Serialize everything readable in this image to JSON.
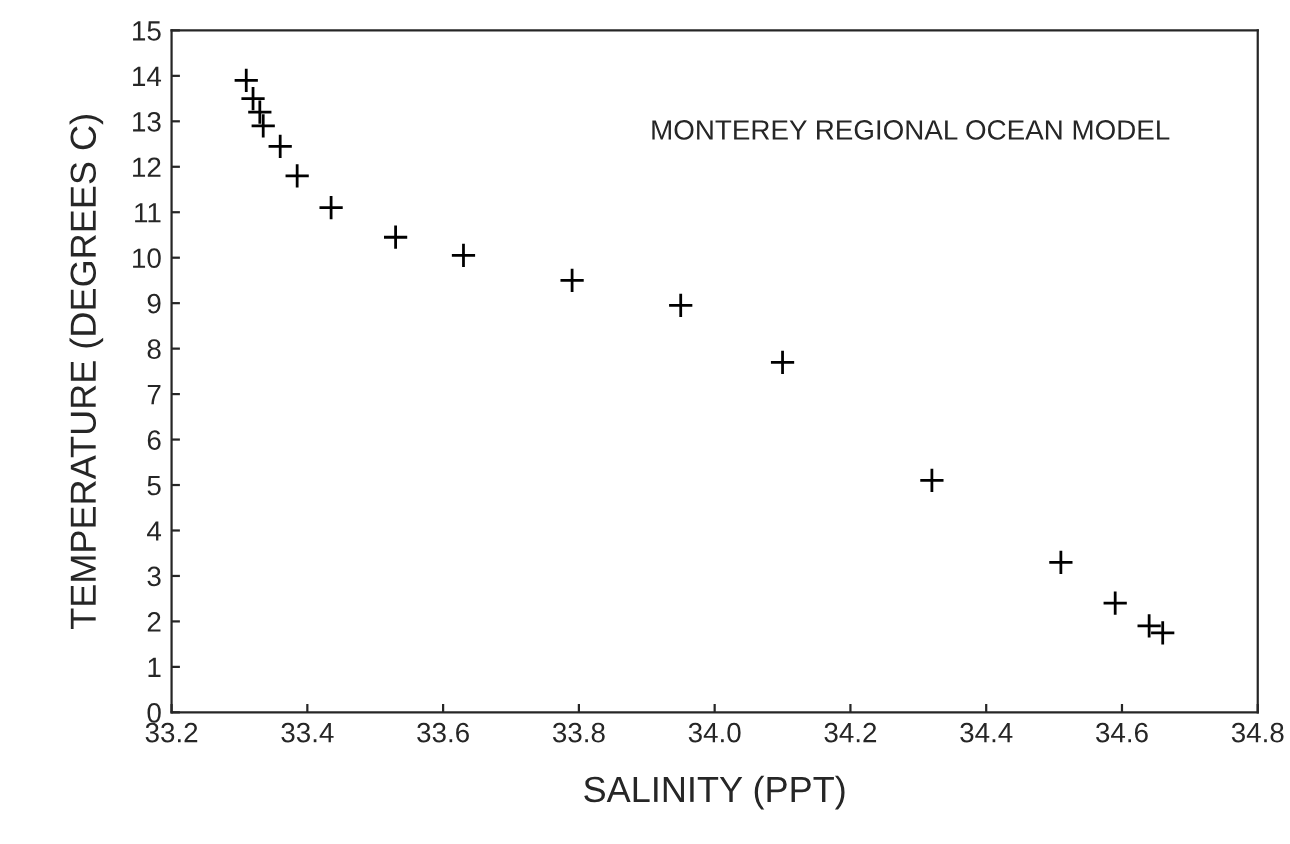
{
  "chart_data": {
    "type": "scatter",
    "xlabel": "SALINITY (PPT)",
    "ylabel": "TEMPERATURE (DEGREES C)",
    "annotations": [
      "MONTEREY REGIONAL OCEAN MODEL"
    ],
    "x": [
      33.31,
      33.32,
      33.33,
      33.335,
      33.36,
      33.385,
      33.435,
      33.53,
      33.63,
      33.79,
      33.95,
      34.1,
      34.32,
      34.51,
      34.59,
      34.64,
      34.66
    ],
    "series": [
      {
        "color": "#000000",
        "values": [
          13.9,
          13.5,
          13.2,
          12.9,
          12.45,
          11.8,
          11.1,
          10.45,
          10.05,
          9.5,
          8.95,
          7.7,
          5.1,
          3.3,
          2.4,
          1.9,
          1.75
        ]
      }
    ],
    "marker": "cross",
    "grid": false,
    "legend": false,
    "xlim": [
      33.2,
      34.8
    ],
    "xticks": [
      33.2,
      33.4,
      33.6,
      33.8,
      {
        "value": 34.0,
        "label": "34.0"
      },
      34.2,
      34.4,
      34.6,
      34.8
    ],
    "ylim": [
      0,
      15
    ],
    "yticks": [
      0,
      1,
      2,
      3,
      4,
      5,
      6,
      7,
      8,
      9,
      10,
      11,
      12,
      13,
      14,
      15
    ]
  }
}
